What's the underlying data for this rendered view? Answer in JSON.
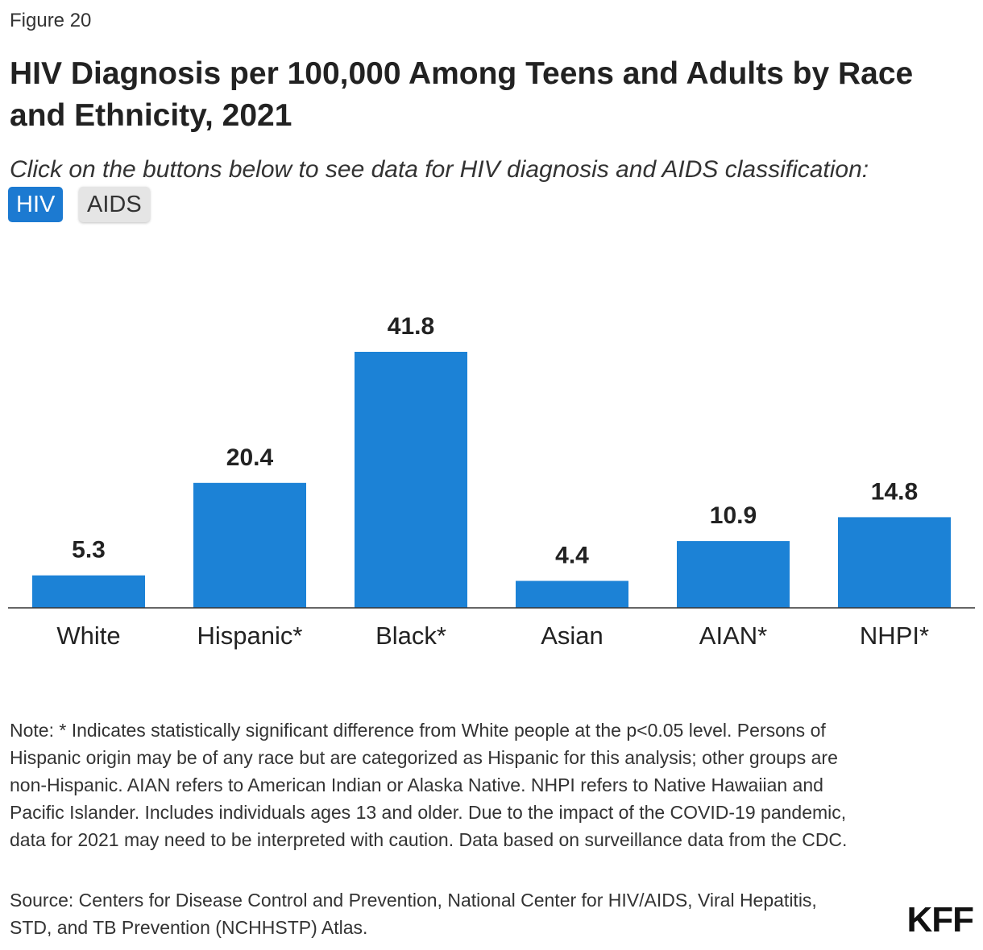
{
  "figure_label": "Figure 20",
  "title": "HIV Diagnosis per 100,000 Among Teens and Adults by Race and Ethnicity, 2021",
  "subtitle": "Click on the buttons below to see data for HIV diagnosis and AIDS classification:",
  "buttons": [
    "HIV",
    "AIDS"
  ],
  "chart_data": {
    "type": "bar",
    "categories": [
      "White",
      "Hispanic*",
      "Black*",
      "Asian",
      "AIAN*",
      "NHPI*"
    ],
    "values": [
      5.3,
      20.4,
      41.8,
      4.4,
      10.9,
      14.8
    ],
    "color": "#1c82d6",
    "grid": false
  },
  "note": "Note: * Indicates statistically significant difference from White people at the p<0.05 level. Persons of Hispanic origin may be of any race but are categorized as Hispanic for this analysis; other groups are non-Hispanic. AIAN refers to American Indian or Alaska Native. NHPI refers to Native Hawaiian and Pacific Islander. Includes individuals ages 13 and older. Due to the impact of the COVID-19 pandemic, data for 2021 may need to be interpreted with caution. Data based on surveillance data from the CDC.",
  "source": "Source: Centers for Disease Control and Prevention, National Center for HIV/AIDS, Viral Hepatitis, STD, and TB Prevention (NCHHSTP) Atlas.",
  "logo": "KFF"
}
